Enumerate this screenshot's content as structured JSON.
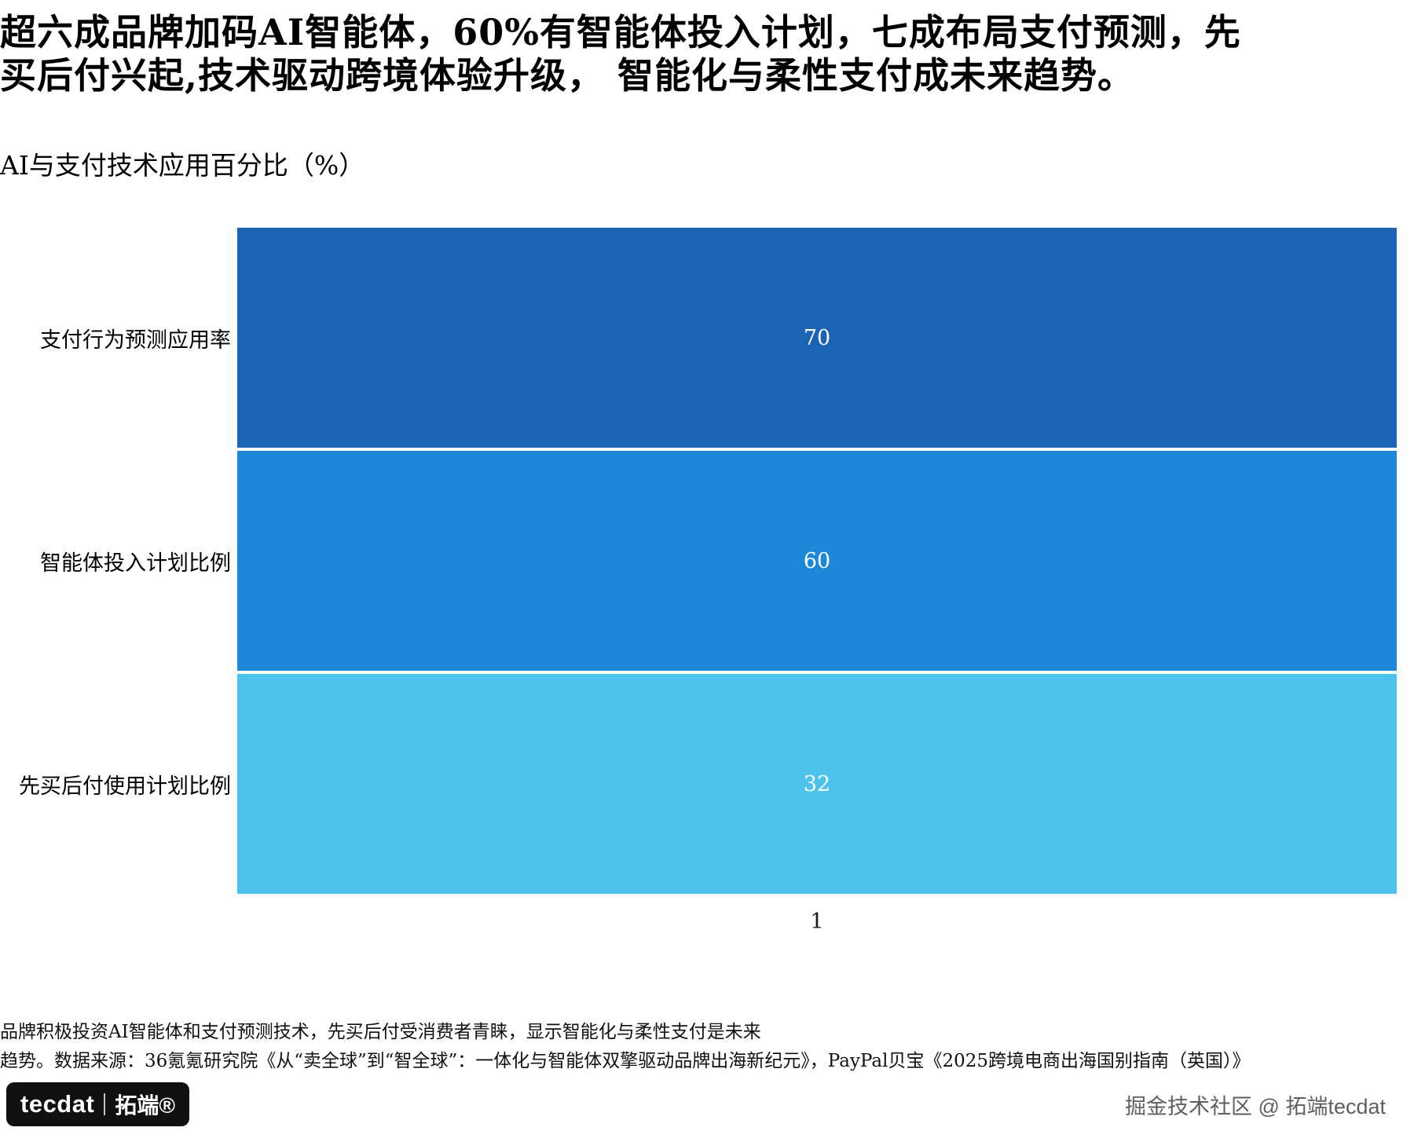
{
  "header": {
    "title_line1": "超六成品牌加码AI智能体，60%有智能体投入计划，七成布局支付预测，先",
    "title_line2": "买后付兴起,技术驱动跨境体验升级， 智能化与柔性支付成未来趋势。"
  },
  "chart_data": {
    "type": "bar",
    "orientation": "horizontal",
    "title": "AI与支付技术应用百分比（%）",
    "categories": [
      "支付行为预测应用率",
      "智能体投入计划比例",
      "先买后付使用计划比例"
    ],
    "values": [
      70,
      60,
      32
    ],
    "colors": [
      "#1b63b5",
      "#1e88d8",
      "#4cc2ec"
    ],
    "value_label_color": "#ffffff",
    "x_tick": "1",
    "bar_display": "full-width",
    "legend": "none",
    "grid": false
  },
  "footer": {
    "note_line1": "品牌积极投资AI智能体和支付预测技术，先买后付受消费者青睐，显示智能化与柔性支付是未来",
    "note_line2": "趋势。数据来源：36氪氪研究院《从“卖全球”到“智全球”：一体化与智能体双擎驱动品牌出海新纪元》，PayPal贝宝《2025跨境电商出海国别指南（英国）》",
    "logo_text": "tecdat",
    "logo_cn": "拓端®",
    "credit": "掘金技术社区 @ 拓端tecdat"
  }
}
